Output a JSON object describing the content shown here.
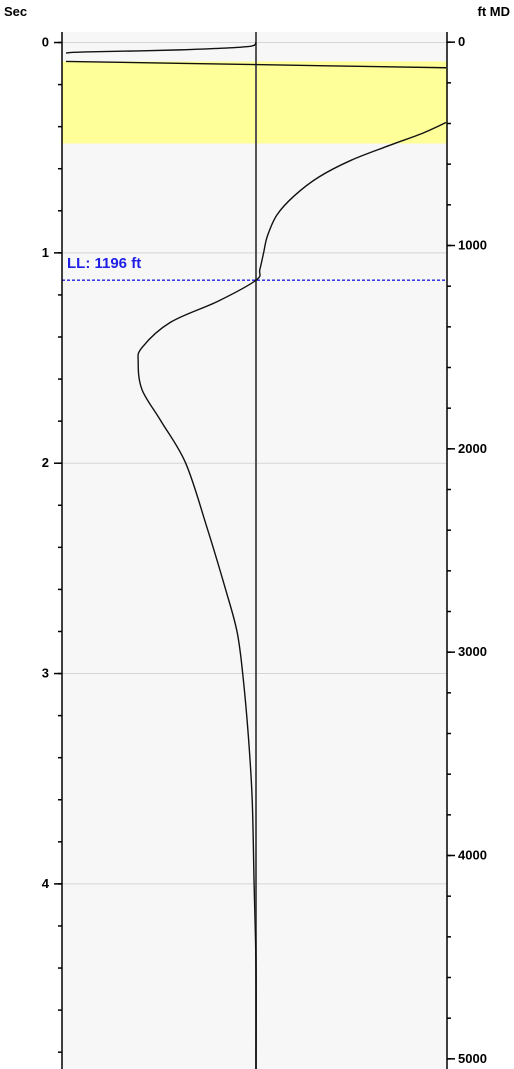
{
  "chart_data": {
    "type": "line",
    "left_axis": {
      "title": "Sec",
      "range": [
        -0.05,
        4.88
      ],
      "major_ticks": [
        0,
        1,
        2,
        3,
        4
      ],
      "major_tick_labels": [
        "0",
        "1",
        "2",
        "3",
        "4"
      ],
      "minor_step": 0.2
    },
    "right_axis": {
      "title": "ft MD",
      "range": [
        -50,
        5050
      ],
      "major_ticks": [
        0,
        1000,
        2000,
        3000,
        4000,
        5000
      ],
      "major_tick_labels": [
        "0",
        "1000",
        "2000",
        "3000",
        "4000",
        "5000"
      ],
      "minor_step": 200
    },
    "grid": "horizontal at major ticks",
    "highlight_band": {
      "from": 0.09,
      "to": 0.48,
      "color": "#ffff99"
    },
    "marker": {
      "label": "LL: 1196 ft",
      "value": 1.13,
      "color": "#1f1fe6"
    },
    "center_line": {
      "color": "#555555"
    },
    "series": [
      {
        "x": [
          0.0,
          -0.05,
          -0.4,
          -0.9,
          -1.0
        ],
        "y": [
          0.0,
          0.02,
          0.035,
          0.045,
          0.05
        ]
      },
      {
        "x": [
          -1.0,
          0.0,
          1.0
        ],
        "y": [
          0.09,
          0.105,
          0.12
        ]
      },
      {
        "x": [
          1.0,
          0.88,
          0.7,
          0.5,
          0.33,
          0.2,
          0.11,
          0.06,
          0.04,
          0.02,
          0.0,
          -0.2,
          -0.45,
          -0.6,
          -0.62,
          -0.6,
          -0.5,
          -0.37,
          -0.26,
          -0.16,
          -0.1,
          -0.07,
          -0.04,
          -0.02,
          -0.01,
          0.0,
          0.0
        ],
        "y": [
          0.38,
          0.43,
          0.49,
          0.56,
          0.64,
          0.73,
          0.82,
          0.92,
          1.0,
          1.08,
          1.13,
          1.23,
          1.33,
          1.45,
          1.52,
          1.65,
          1.8,
          2.0,
          2.3,
          2.6,
          2.8,
          3.0,
          3.3,
          3.6,
          4.0,
          4.4,
          4.88
        ]
      }
    ]
  }
}
